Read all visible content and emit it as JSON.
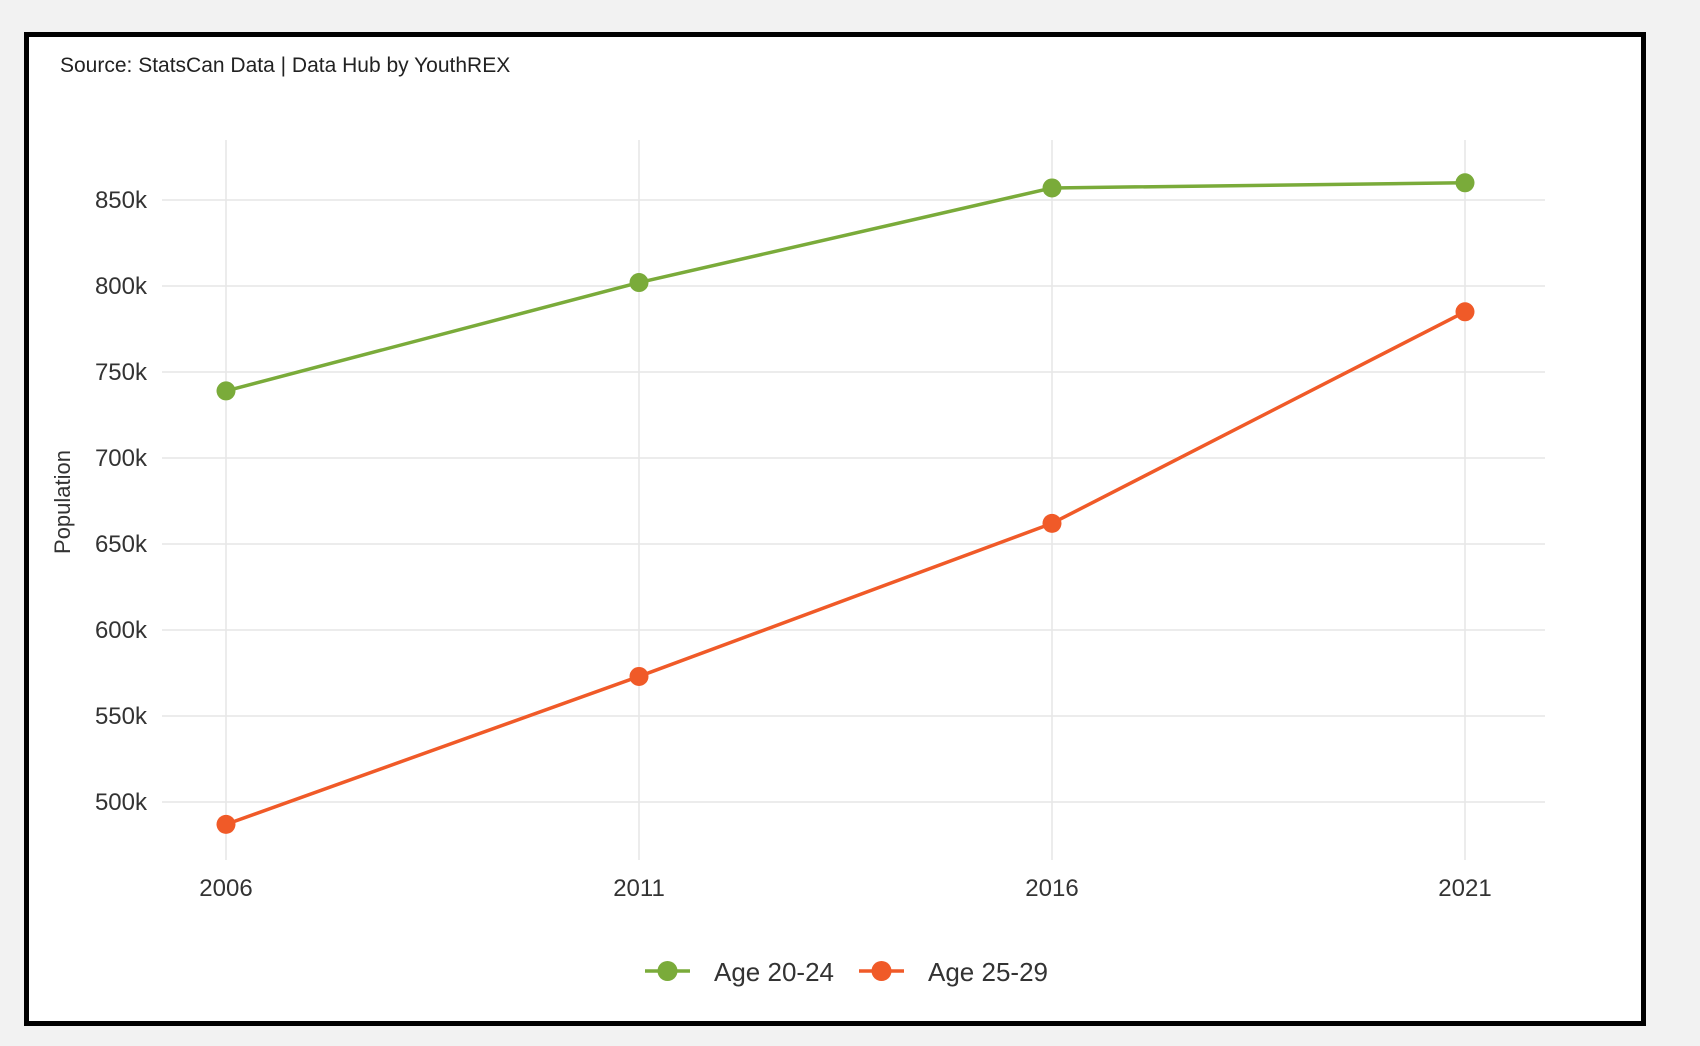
{
  "source_label": "Source: StatsCan Data | Data Hub by YouthREX",
  "colors": {
    "age_20_24": "#7aab3a",
    "age_25_29": "#f05a28",
    "grid": "#e6e6e6"
  },
  "chart_data": {
    "type": "line",
    "title": "",
    "xlabel": "",
    "ylabel": "Population",
    "x": [
      "2006",
      "2011",
      "2016",
      "2021"
    ],
    "ylim": [
      475000,
      875000
    ],
    "yticks": [
      500000,
      550000,
      600000,
      650000,
      700000,
      750000,
      800000,
      850000
    ],
    "ytick_labels": [
      "500k",
      "550k",
      "600k",
      "650k",
      "700k",
      "750k",
      "800k",
      "850k"
    ],
    "grid": true,
    "legend_position": "bottom-center",
    "series": [
      {
        "name": "Age 20-24",
        "color": "#7aab3a",
        "values": [
          739000,
          802000,
          857000,
          860000
        ]
      },
      {
        "name": "Age 25-29",
        "color": "#f05a28",
        "values": [
          487000,
          573000,
          662000,
          785000
        ]
      }
    ]
  }
}
